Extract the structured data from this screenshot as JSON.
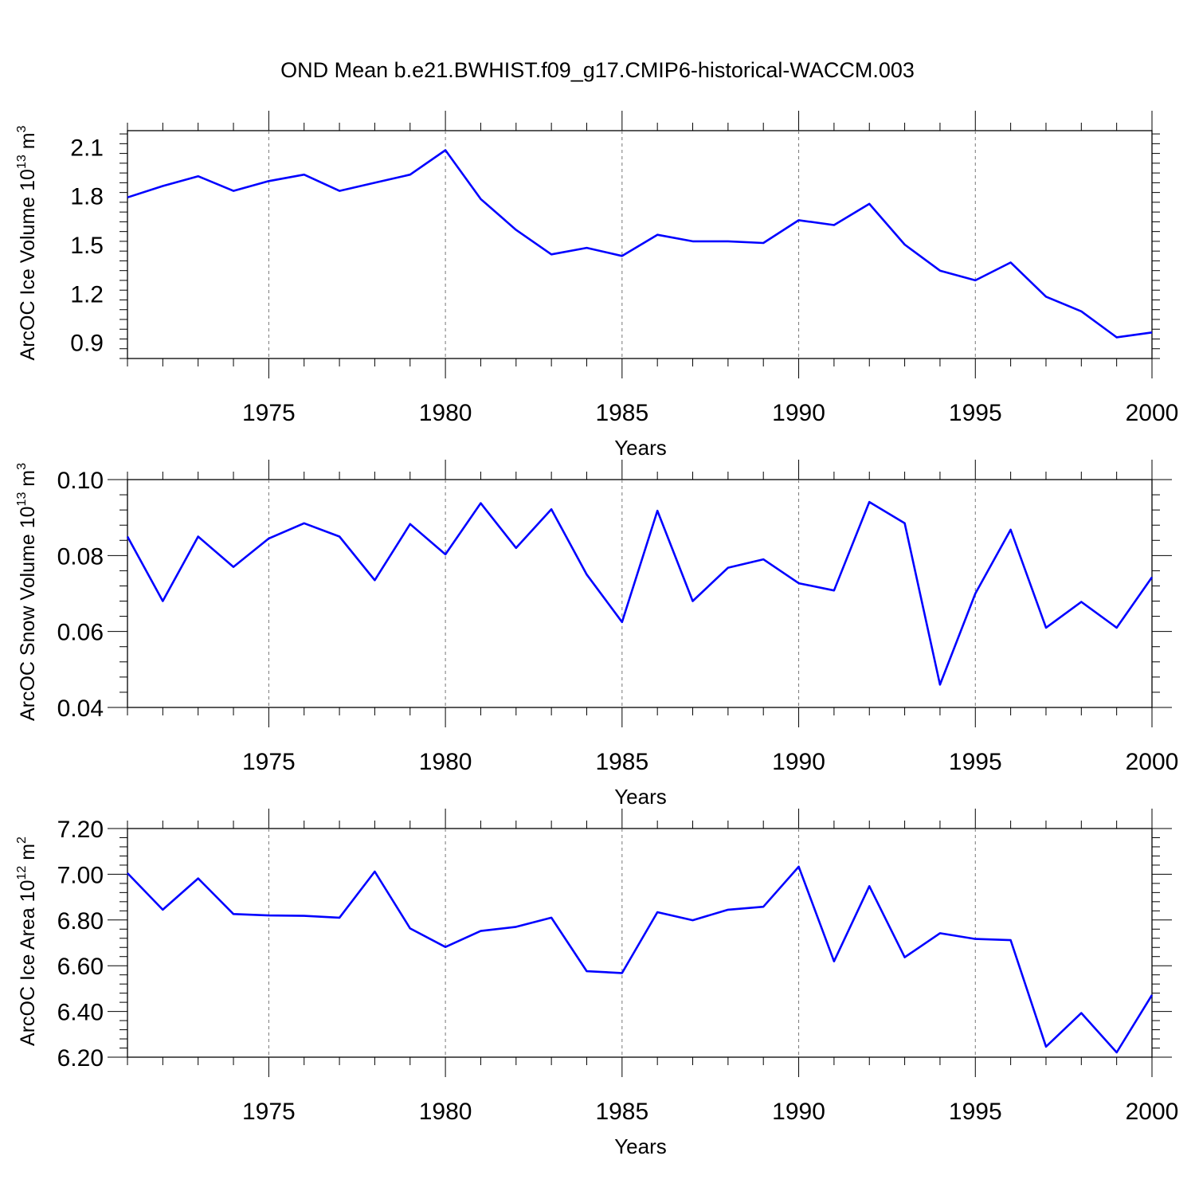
{
  "figure": {
    "title": "OND Mean b.e21.BWHIST.f09_g17.CMIP6-historical-WACCM.003",
    "line_color": "#0000ff"
  },
  "chart_data": [
    {
      "type": "line",
      "xlabel": "Years",
      "ylabel": {
        "text": "ArcOC Ice Volume 10",
        "exp": "13",
        "unit": " m",
        "unit_exp": "3"
      },
      "xlim": [
        1971,
        2000
      ],
      "ylim": [
        0.8,
        2.2
      ],
      "xticks": [
        "1975",
        "1980",
        "1985",
        "1990",
        "1995",
        "2000"
      ],
      "yticks": [
        "0.9",
        "1.2",
        "1.5",
        "1.8",
        "2.1"
      ],
      "x": [
        1971,
        1972,
        1973,
        1974,
        1975,
        1976,
        1977,
        1978,
        1979,
        1980,
        1981,
        1982,
        1983,
        1984,
        1985,
        1986,
        1987,
        1988,
        1989,
        1990,
        1991,
        1992,
        1993,
        1994,
        1995,
        1996,
        1997,
        1998,
        1999,
        2000
      ],
      "values": [
        1.79,
        1.86,
        1.92,
        1.83,
        1.89,
        1.93,
        1.83,
        1.88,
        1.93,
        2.08,
        1.78,
        1.59,
        1.44,
        1.48,
        1.43,
        1.56,
        1.52,
        1.52,
        1.51,
        1.65,
        1.62,
        1.75,
        1.5,
        1.34,
        1.28,
        1.39,
        1.18,
        1.09,
        0.93,
        0.96
      ]
    },
    {
      "type": "line",
      "xlabel": "Years",
      "ylabel": {
        "text": "ArcOC Snow Volume 10",
        "exp": "13",
        "unit": " m",
        "unit_exp": "3"
      },
      "xlim": [
        1971,
        2000
      ],
      "ylim": [
        0.04,
        0.1
      ],
      "xticks": [
        "1975",
        "1980",
        "1985",
        "1990",
        "1995",
        "2000"
      ],
      "yticks": [
        "0.04",
        "0.06",
        "0.08",
        "0.10"
      ],
      "x": [
        1971,
        1972,
        1973,
        1974,
        1975,
        1976,
        1977,
        1978,
        1979,
        1980,
        1981,
        1982,
        1983,
        1984,
        1985,
        1986,
        1987,
        1988,
        1989,
        1990,
        1991,
        1992,
        1993,
        1994,
        1995,
        1996,
        1997,
        1998,
        1999,
        2000
      ],
      "values": [
        0.085,
        0.068,
        0.085,
        0.077,
        0.0845,
        0.0885,
        0.085,
        0.0735,
        0.0883,
        0.0803,
        0.0938,
        0.082,
        0.0922,
        0.075,
        0.0625,
        0.0918,
        0.068,
        0.0768,
        0.079,
        0.0727,
        0.0708,
        0.0941,
        0.0885,
        0.046,
        0.07,
        0.0868,
        0.061,
        0.0678,
        0.061,
        0.0743
      ]
    },
    {
      "type": "line",
      "xlabel": "Years",
      "ylabel": {
        "text": "ArcOC Ice Area 10",
        "exp": "12",
        "unit": " m",
        "unit_exp": "2"
      },
      "xlim": [
        1971,
        2000
      ],
      "ylim": [
        6.2,
        7.2
      ],
      "xticks": [
        "1975",
        "1980",
        "1985",
        "1990",
        "1995",
        "2000"
      ],
      "yticks": [
        "6.20",
        "6.40",
        "6.60",
        "6.80",
        "7.00",
        "7.20"
      ],
      "x": [
        1971,
        1972,
        1973,
        1974,
        1975,
        1976,
        1977,
        1978,
        1979,
        1980,
        1981,
        1982,
        1983,
        1984,
        1985,
        1986,
        1987,
        1988,
        1989,
        1990,
        1991,
        1992,
        1993,
        1994,
        1995,
        1996,
        1997,
        1998,
        1999,
        2000
      ],
      "values": [
        7.005,
        6.845,
        6.982,
        6.826,
        6.82,
        6.818,
        6.81,
        7.012,
        6.763,
        6.682,
        6.752,
        6.77,
        6.81,
        6.576,
        6.568,
        6.834,
        6.799,
        6.845,
        6.858,
        7.033,
        6.619,
        6.948,
        6.637,
        6.742,
        6.717,
        6.712,
        6.246,
        6.393,
        6.221,
        6.472
      ]
    }
  ]
}
